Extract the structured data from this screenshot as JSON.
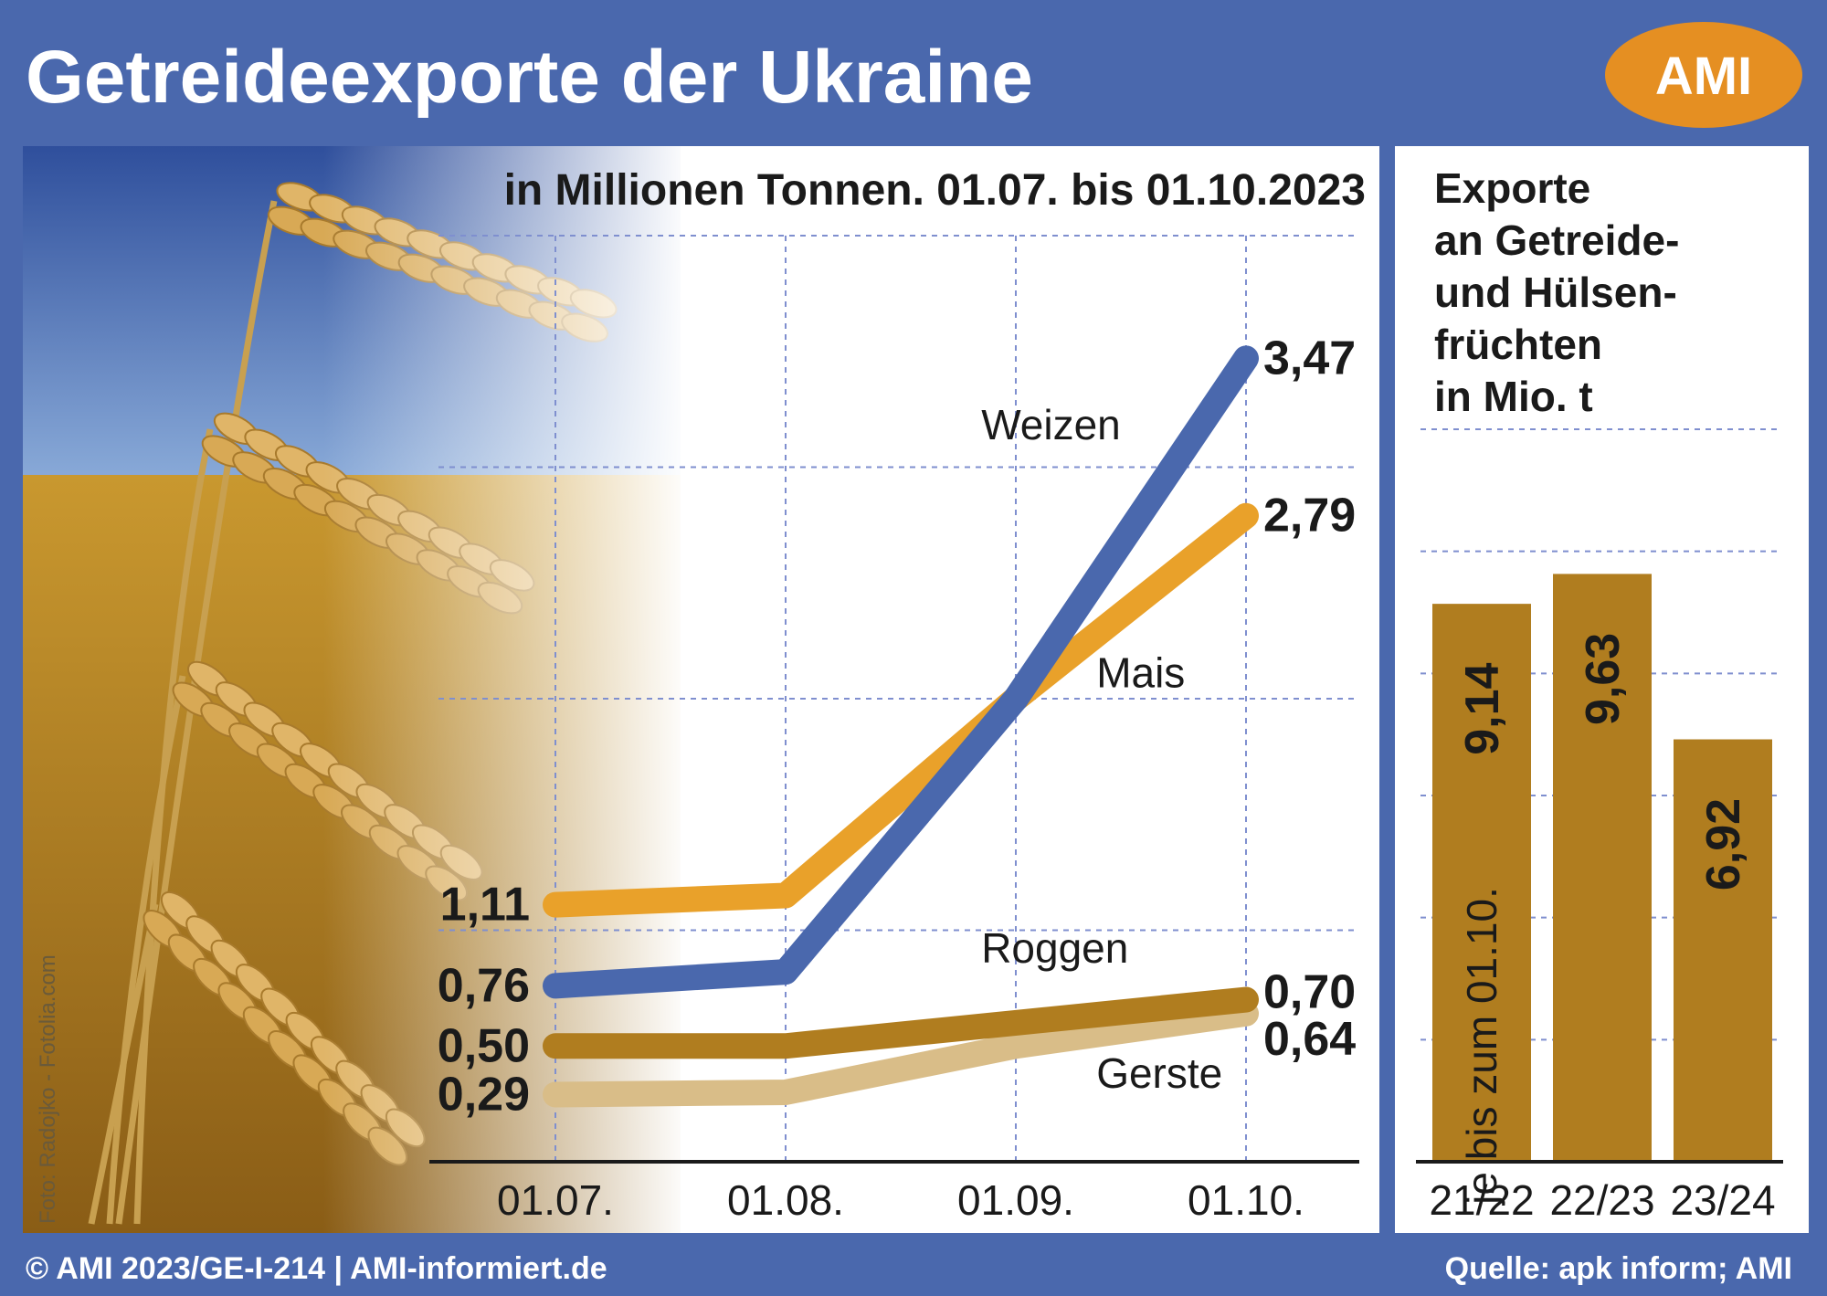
{
  "header": {
    "title": "Getreideexporte der Ukraine",
    "logo_text": "AMI"
  },
  "photo_credit": "Foto: Radojko - Fotolia.com",
  "footer": {
    "left": "© AMI 2023/GE-I-214 | AMI-informiert.de",
    "right": "Quelle: apk inform; AMI"
  },
  "colors": {
    "background": "#4a68ad",
    "panel": "#ffffff",
    "weizen": "#4a68ad",
    "mais": "#e9a12a",
    "roggen": "#b07d1f",
    "gerste": "#d9bd88",
    "bar": "#b07d1f",
    "logo": "#e58f22",
    "grid": "#7f8fcf"
  },
  "chart_data": [
    {
      "type": "line",
      "subtitle": "in Millionen Tonnen. 01.07. bis 01.10.2023",
      "x": [
        "01.07.",
        "01.08.",
        "01.09.",
        "01.10."
      ],
      "ylim": [
        0,
        4
      ],
      "grid": true,
      "series": [
        {
          "name": "Weizen",
          "values": [
            0.76,
            0.82,
            2.0,
            3.47
          ],
          "start_label": "0,76",
          "end_label": "3,47",
          "color": "#4a68ad"
        },
        {
          "name": "Mais",
          "values": [
            1.11,
            1.15,
            2.0,
            2.79
          ],
          "start_label": "1,11",
          "end_label": "2,79",
          "color": "#e9a12a"
        },
        {
          "name": "Roggen",
          "values": [
            0.5,
            0.5,
            0.6,
            0.7
          ],
          "start_label": "0,50",
          "end_label": "0,70",
          "color": "#b07d1f"
        },
        {
          "name": "Gerste",
          "values": [
            0.29,
            0.3,
            0.5,
            0.64
          ],
          "start_label": "0,29",
          "end_label": "0,64",
          "color": "#d9bd88"
        }
      ]
    },
    {
      "type": "bar",
      "title_lines": [
        "Exporte",
        "an Getreide-",
        "und Hülsen-",
        "früchten",
        "in Mio. t"
      ],
      "categories": [
        "21/22",
        "22/23",
        "23/24"
      ],
      "values": [
        9.14,
        9.63,
        6.92
      ],
      "value_labels": [
        "9,14",
        "9,63",
        "6,92"
      ],
      "ylim": [
        0,
        12
      ],
      "grid": true,
      "annotation": "je bis zum 01.10."
    }
  ]
}
